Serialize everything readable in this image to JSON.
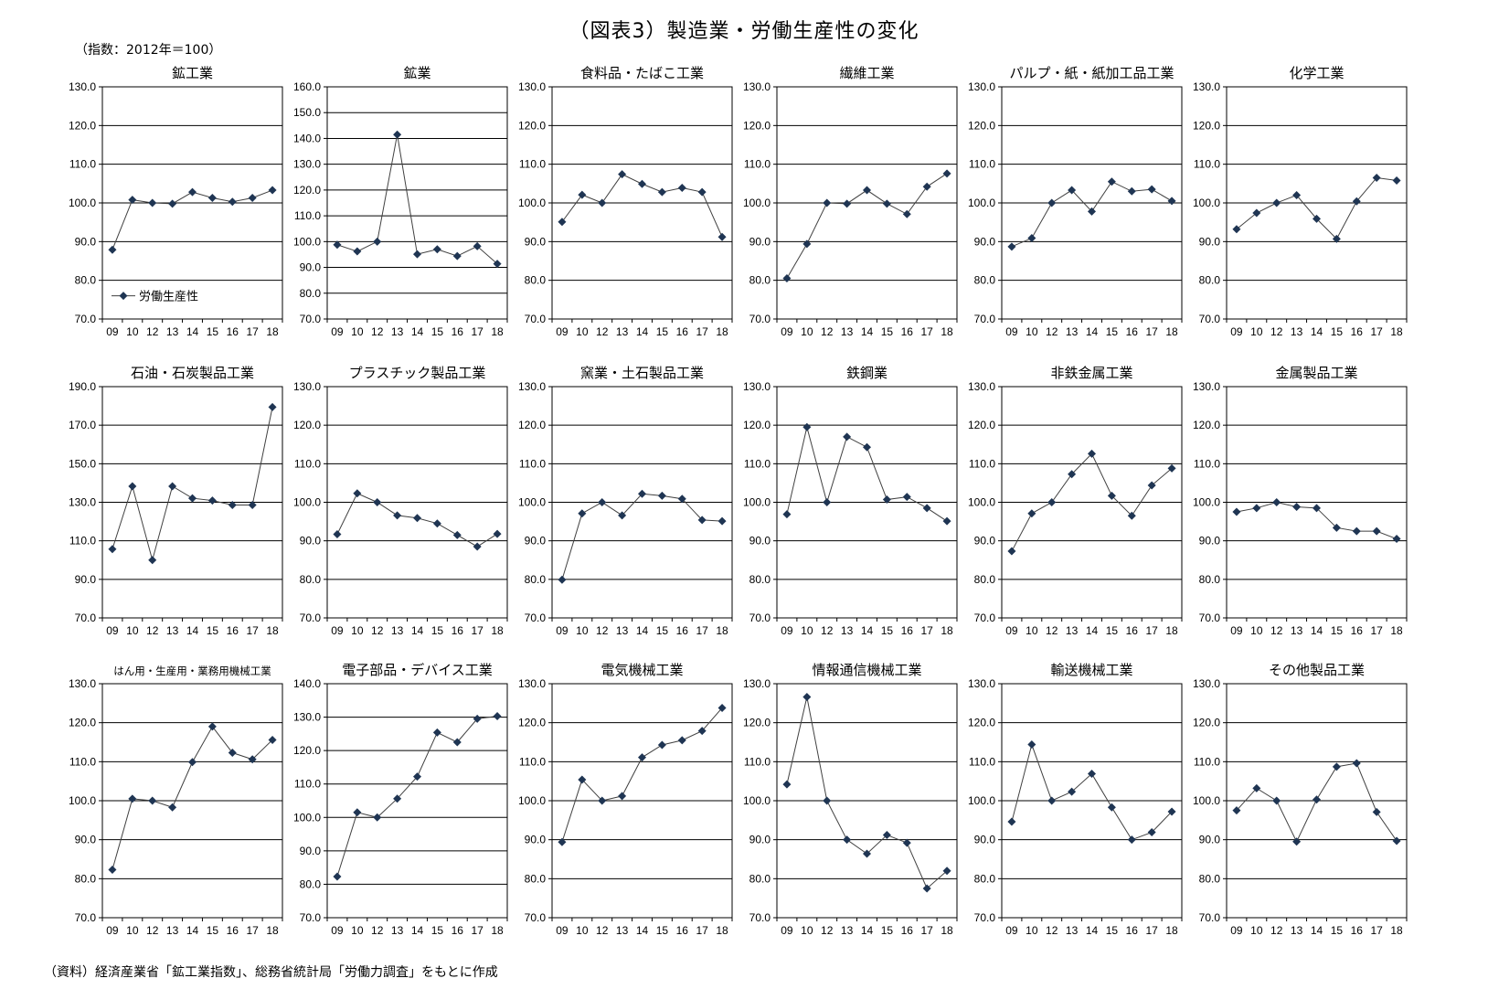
{
  "header": {
    "title": "（図表3）製造業・労働生産性の変化",
    "unit_note": "（指数：2012年＝100）"
  },
  "footer": {
    "source": "（資料）経済産業省「鉱工業指数」、総務省統計局「労働力調査」をもとに作成"
  },
  "colors": {
    "marker": "#1f3553",
    "line": "#404040",
    "grid": "#000000"
  },
  "legend": {
    "label": "労働生産性"
  },
  "chart_data": [
    {
      "type": "line",
      "title": "鉱工業",
      "categories": [
        "09",
        "10",
        "12",
        "13",
        "14",
        "15",
        "16",
        "17",
        "18"
      ],
      "series": [
        {
          "name": "労働生産性",
          "values": [
            87.9,
            100.8,
            100.0,
            99.8,
            102.8,
            101.3,
            100.3,
            101.3,
            103.3
          ]
        }
      ],
      "ylim": [
        70,
        130
      ],
      "yticks": [
        70,
        80,
        90,
        100,
        110,
        120,
        130
      ],
      "grid": true,
      "legend_position": "bottom-left"
    },
    {
      "type": "line",
      "title": "鉱業",
      "categories": [
        "09",
        "10",
        "12",
        "13",
        "14",
        "15",
        "16",
        "17",
        "18"
      ],
      "series": [
        {
          "name": "労働生産性",
          "values": [
            98.8,
            96.2,
            100.0,
            141.5,
            95.1,
            97.0,
            94.4,
            98.2,
            91.4
          ]
        }
      ],
      "ylim": [
        70,
        160
      ],
      "yticks": [
        70,
        80,
        90,
        100,
        110,
        120,
        130,
        140,
        150,
        160
      ],
      "grid": true
    },
    {
      "type": "line",
      "title": "食料品・たばこ工業",
      "categories": [
        "09",
        "10",
        "12",
        "13",
        "14",
        "15",
        "16",
        "17",
        "18"
      ],
      "series": [
        {
          "name": "労働生産性",
          "values": [
            95.1,
            102.1,
            100.0,
            107.4,
            104.9,
            102.8,
            103.9,
            102.8,
            91.2
          ]
        }
      ],
      "ylim": [
        70,
        130
      ],
      "yticks": [
        70,
        80,
        90,
        100,
        110,
        120,
        130
      ],
      "grid": true
    },
    {
      "type": "line",
      "title": "繊維工業",
      "categories": [
        "09",
        "10",
        "12",
        "13",
        "14",
        "15",
        "16",
        "17",
        "18"
      ],
      "series": [
        {
          "name": "労働生産性",
          "values": [
            80.5,
            89.4,
            100.0,
            99.8,
            103.3,
            99.8,
            97.1,
            104.2,
            107.6
          ]
        }
      ],
      "ylim": [
        70,
        130
      ],
      "yticks": [
        70,
        80,
        90,
        100,
        110,
        120,
        130
      ],
      "grid": true
    },
    {
      "type": "line",
      "title": "パルプ・紙・紙加工品工業",
      "categories": [
        "09",
        "10",
        "12",
        "13",
        "14",
        "15",
        "16",
        "17",
        "18"
      ],
      "series": [
        {
          "name": "労働生産性",
          "values": [
            88.7,
            90.9,
            100.0,
            103.3,
            97.8,
            105.5,
            103.0,
            103.5,
            100.5
          ]
        }
      ],
      "ylim": [
        70,
        130
      ],
      "yticks": [
        70,
        80,
        90,
        100,
        110,
        120,
        130
      ],
      "grid": true
    },
    {
      "type": "line",
      "title": "化学工業",
      "categories": [
        "09",
        "10",
        "12",
        "13",
        "14",
        "15",
        "16",
        "17",
        "18"
      ],
      "series": [
        {
          "name": "労働生産性",
          "values": [
            93.2,
            97.4,
            100.0,
            102.0,
            95.9,
            90.7,
            100.4,
            106.5,
            105.8
          ]
        }
      ],
      "ylim": [
        70,
        130
      ],
      "yticks": [
        70,
        80,
        90,
        100,
        110,
        120,
        130
      ],
      "grid": true
    },
    {
      "type": "line",
      "title": "石油・石炭製品工業",
      "categories": [
        "09",
        "10",
        "12",
        "13",
        "14",
        "15",
        "16",
        "17",
        "18"
      ],
      "series": [
        {
          "name": "労働生産性",
          "values": [
            105.7,
            138.3,
            100.0,
            138.3,
            132.1,
            130.9,
            128.6,
            128.6,
            179.4
          ]
        }
      ],
      "ylim": [
        70,
        190
      ],
      "yticks": [
        70,
        90,
        110,
        130,
        150,
        170,
        190
      ],
      "grid": true
    },
    {
      "type": "line",
      "title": "プラスチック製品工業",
      "categories": [
        "09",
        "10",
        "12",
        "13",
        "14",
        "15",
        "16",
        "17",
        "18"
      ],
      "series": [
        {
          "name": "労働生産性",
          "values": [
            91.7,
            102.3,
            100.0,
            96.6,
            95.9,
            94.5,
            91.5,
            88.5,
            91.8
          ]
        }
      ],
      "ylim": [
        70,
        130
      ],
      "yticks": [
        70,
        80,
        90,
        100,
        110,
        120,
        130
      ],
      "grid": true
    },
    {
      "type": "line",
      "title": "窯業・土石製品工業",
      "categories": [
        "09",
        "10",
        "12",
        "13",
        "14",
        "15",
        "16",
        "17",
        "18"
      ],
      "series": [
        {
          "name": "労働生産性",
          "values": [
            79.9,
            97.1,
            100.0,
            96.6,
            102.2,
            101.7,
            100.9,
            95.4,
            95.1
          ]
        }
      ],
      "ylim": [
        70,
        130
      ],
      "yticks": [
        70,
        80,
        90,
        100,
        110,
        120,
        130
      ],
      "grid": true
    },
    {
      "type": "line",
      "title": "鉄鋼業",
      "categories": [
        "09",
        "10",
        "12",
        "13",
        "14",
        "15",
        "16",
        "17",
        "18"
      ],
      "series": [
        {
          "name": "労働生産性",
          "values": [
            96.9,
            119.5,
            100.0,
            117.0,
            114.3,
            100.7,
            101.4,
            98.5,
            95.1
          ]
        }
      ],
      "ylim": [
        70,
        130
      ],
      "yticks": [
        70,
        80,
        90,
        100,
        110,
        120,
        130
      ],
      "grid": true
    },
    {
      "type": "line",
      "title": "非鉄金属工業",
      "categories": [
        "09",
        "10",
        "12",
        "13",
        "14",
        "15",
        "16",
        "17",
        "18"
      ],
      "series": [
        {
          "name": "労働生産性",
          "values": [
            87.3,
            97.1,
            100.0,
            107.3,
            112.6,
            101.7,
            96.5,
            104.4,
            108.8
          ]
        }
      ],
      "ylim": [
        70,
        130
      ],
      "yticks": [
        70,
        80,
        90,
        100,
        110,
        120,
        130
      ],
      "grid": true
    },
    {
      "type": "line",
      "title": "金属製品工業",
      "categories": [
        "09",
        "10",
        "12",
        "13",
        "14",
        "15",
        "16",
        "17",
        "18"
      ],
      "series": [
        {
          "name": "労働生産性",
          "values": [
            97.5,
            98.5,
            100.0,
            98.8,
            98.5,
            93.4,
            92.5,
            92.5,
            90.5
          ]
        }
      ],
      "ylim": [
        70,
        130
      ],
      "yticks": [
        70,
        80,
        90,
        100,
        110,
        120,
        130
      ],
      "grid": true
    },
    {
      "type": "line",
      "title": "はん用・生産用・業務用機械工業",
      "categories": [
        "09",
        "10",
        "12",
        "13",
        "14",
        "15",
        "16",
        "17",
        "18"
      ],
      "series": [
        {
          "name": "労働生産性",
          "values": [
            82.3,
            100.5,
            100.0,
            98.3,
            109.9,
            119.0,
            112.3,
            110.6,
            115.6
          ]
        }
      ],
      "ylim": [
        70,
        130
      ],
      "yticks": [
        70,
        80,
        90,
        100,
        110,
        120,
        130
      ],
      "grid": true
    },
    {
      "type": "line",
      "title": "電子部品・デバイス工業",
      "categories": [
        "09",
        "10",
        "12",
        "13",
        "14",
        "15",
        "16",
        "17",
        "18"
      ],
      "series": [
        {
          "name": "労働生産性",
          "values": [
            82.3,
            101.5,
            100.0,
            105.6,
            112.2,
            125.4,
            122.5,
            129.5,
            130.3
          ]
        }
      ],
      "ylim": [
        70,
        140
      ],
      "yticks": [
        70,
        80,
        90,
        100,
        110,
        120,
        130,
        140
      ],
      "grid": true
    },
    {
      "type": "line",
      "title": "電気機械工業",
      "categories": [
        "09",
        "10",
        "12",
        "13",
        "14",
        "15",
        "16",
        "17",
        "18"
      ],
      "series": [
        {
          "name": "労働生産性",
          "values": [
            89.4,
            105.4,
            100.0,
            101.2,
            111.1,
            114.3,
            115.5,
            117.9,
            123.8
          ]
        }
      ],
      "ylim": [
        70,
        130
      ],
      "yticks": [
        70,
        80,
        90,
        100,
        110,
        120,
        130
      ],
      "grid": true
    },
    {
      "type": "line",
      "title": "情報通信機械工業",
      "categories": [
        "09",
        "10",
        "12",
        "13",
        "14",
        "15",
        "16",
        "17",
        "18"
      ],
      "series": [
        {
          "name": "労働生産性",
          "values": [
            104.2,
            126.6,
            100.0,
            90.0,
            86.4,
            91.2,
            89.2,
            77.5,
            82.0
          ]
        }
      ],
      "ylim": [
        70,
        130
      ],
      "yticks": [
        70,
        80,
        90,
        100,
        110,
        120,
        130
      ],
      "grid": true
    },
    {
      "type": "line",
      "title": "輸送機械工業",
      "categories": [
        "09",
        "10",
        "12",
        "13",
        "14",
        "15",
        "16",
        "17",
        "18"
      ],
      "series": [
        {
          "name": "労働生産性",
          "values": [
            94.6,
            114.4,
            100.0,
            102.3,
            106.9,
            98.3,
            90.0,
            91.9,
            97.2
          ]
        }
      ],
      "ylim": [
        70,
        130
      ],
      "yticks": [
        70,
        80,
        90,
        100,
        110,
        120,
        130
      ],
      "grid": true
    },
    {
      "type": "line",
      "title": "その他製品工業",
      "categories": [
        "09",
        "10",
        "12",
        "13",
        "14",
        "15",
        "16",
        "17",
        "18"
      ],
      "series": [
        {
          "name": "労働生産性",
          "values": [
            97.5,
            103.2,
            100.0,
            89.5,
            100.3,
            108.7,
            109.6,
            97.1,
            89.7
          ]
        }
      ],
      "ylim": [
        70,
        130
      ],
      "yticks": [
        70,
        80,
        90,
        100,
        110,
        120,
        130
      ],
      "grid": true
    }
  ]
}
